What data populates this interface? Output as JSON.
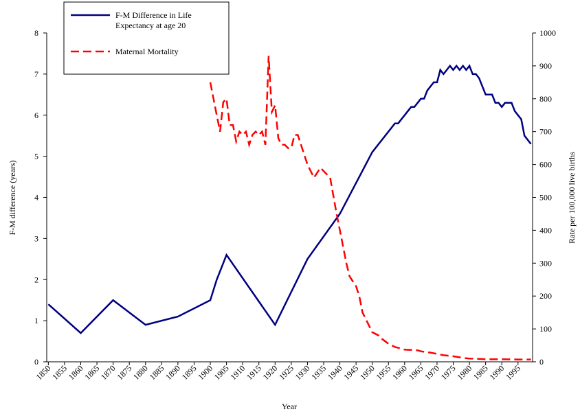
{
  "chart_data": {
    "type": "line",
    "x_label": "Year",
    "y_label": "F-M difference (years)",
    "y2_label": "Rate per 100,000 live births",
    "xlim": [
      1849.5,
      1999.5
    ],
    "xticks": [
      1850,
      1855,
      1860,
      1865,
      1870,
      1875,
      1880,
      1885,
      1890,
      1895,
      1900,
      1905,
      1910,
      1915,
      1920,
      1925,
      1930,
      1935,
      1940,
      1945,
      1950,
      1955,
      1960,
      1965,
      1970,
      1975,
      1980,
      1985,
      1990,
      1995
    ],
    "ylim": [
      0,
      8
    ],
    "yticks": [
      0,
      1,
      2,
      3,
      4,
      5,
      6,
      7,
      8
    ],
    "y2lim": [
      0,
      1000
    ],
    "y2ticks": [
      0,
      100,
      200,
      300,
      400,
      500,
      600,
      700,
      800,
      900,
      1000
    ],
    "legend": "upper left",
    "series": [
      {
        "name": "F-M Difference in Life Expectancy at age 20",
        "color": "#000080",
        "dash": false,
        "x": [
          1850,
          1860,
          1870,
          1880,
          1890,
          1900,
          1902,
          1905,
          1920,
          1930,
          1940,
          1950,
          1956,
          1957,
          1958,
          1959,
          1960,
          1961,
          1962,
          1963,
          1964,
          1965,
          1966,
          1967,
          1968,
          1969,
          1970,
          1971,
          1972,
          1973,
          1974,
          1975,
          1976,
          1977,
          1978,
          1979,
          1980,
          1981,
          1982,
          1983,
          1984,
          1985,
          1986,
          1987,
          1988,
          1989,
          1990,
          1991,
          1992,
          1993,
          1994,
          1995,
          1996,
          1997,
          1998,
          1999
        ],
        "values": [
          1.4,
          0.7,
          1.5,
          0.9,
          1.1,
          1.5,
          2.0,
          2.6,
          0.9,
          2.5,
          3.6,
          5.1,
          5.7,
          5.8,
          5.8,
          5.9,
          6.0,
          6.1,
          6.2,
          6.2,
          6.3,
          6.4,
          6.4,
          6.6,
          6.7,
          6.8,
          6.8,
          7.1,
          7.0,
          7.1,
          7.2,
          7.1,
          7.2,
          7.1,
          7.2,
          7.1,
          7.2,
          7.0,
          7.0,
          6.9,
          6.7,
          6.5,
          6.5,
          6.5,
          6.3,
          6.3,
          6.2,
          6.3,
          6.3,
          6.3,
          6.1,
          6.0,
          5.9,
          5.5,
          5.4,
          5.3
        ]
      },
      {
        "name": "Maternal Mortality",
        "color": "#ff0000",
        "dash": true,
        "axis": "y2",
        "x": [
          1900,
          1902,
          1903,
          1904,
          1905,
          1906,
          1907,
          1908,
          1909,
          1910,
          1911,
          1912,
          1913,
          1914,
          1915,
          1916,
          1917,
          1918,
          1919,
          1920,
          1921,
          1922,
          1923,
          1924,
          1925,
          1926,
          1927,
          1928,
          1929,
          1930,
          1931,
          1932,
          1934,
          1936,
          1937,
          1939,
          1940,
          1942,
          1943,
          1945,
          1946,
          1947,
          1949,
          1950,
          1952,
          1953,
          1955,
          1957,
          1959,
          1960,
          1964,
          1965,
          1968,
          1970,
          1972,
          1975,
          1978,
          1980,
          1985,
          1990,
          1995,
          1999
        ],
        "values": [
          850,
          750,
          700,
          790,
          800,
          720,
          720,
          670,
          700,
          690,
          700,
          660,
          690,
          700,
          690,
          700,
          660,
          930,
          760,
          780,
          680,
          660,
          660,
          650,
          650,
          690,
          690,
          660,
          630,
          600,
          580,
          560,
          590,
          570,
          560,
          450,
          400,
          300,
          260,
          230,
          200,
          150,
          110,
          90,
          80,
          70,
          55,
          45,
          40,
          37,
          35,
          32,
          28,
          24,
          20,
          17,
          12,
          10,
          8,
          8,
          7,
          7
        ]
      }
    ]
  }
}
